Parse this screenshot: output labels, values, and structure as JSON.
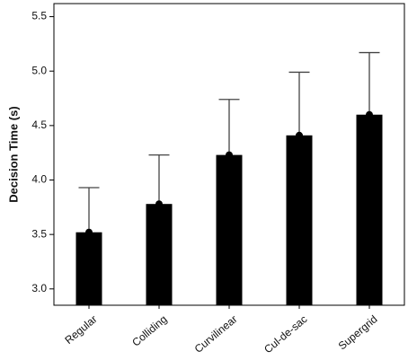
{
  "chart_data": {
    "type": "bar",
    "categories": [
      "Regular",
      "Colliding",
      "Curvilinear",
      "Cul-de-sac",
      "Supergrid"
    ],
    "values": [
      3.52,
      3.78,
      4.23,
      4.41,
      4.6
    ],
    "error_upper": [
      3.93,
      4.23,
      4.74,
      4.99,
      5.17
    ],
    "xlabel": "",
    "ylabel": "Decision Time (s)",
    "ylim": [
      2.85,
      5.62
    ],
    "yticks": [
      3.0,
      3.5,
      4.0,
      4.5,
      5.0,
      5.5
    ],
    "ytick_labels": [
      "3.0",
      "3.5",
      "4.0",
      "4.5",
      "5.0",
      "5.5"
    ],
    "grid": false,
    "bar_color": "#000000",
    "error_bar_color": "#444444"
  }
}
